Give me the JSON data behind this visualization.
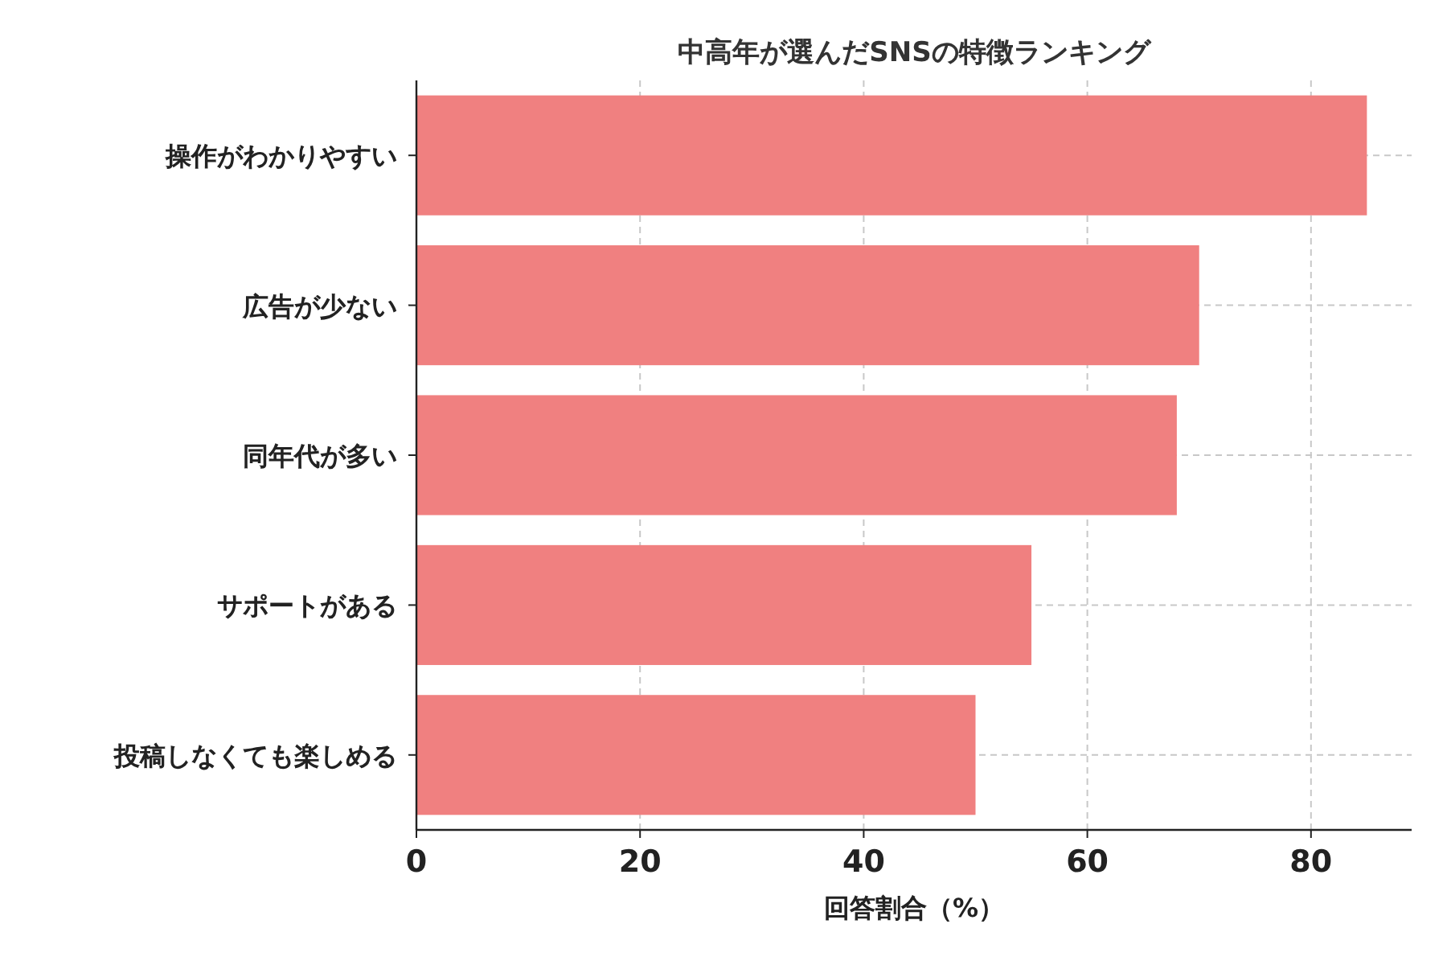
{
  "chart_data": {
    "type": "bar",
    "orientation": "horizontal",
    "title": "中高年が選んだSNSの特徴ランキング",
    "xlabel": "回答割合（%）",
    "categories": [
      "操作がわかりやすい",
      "広告が少ない",
      "同年代が多い",
      "サポートがある",
      "投稿しなくても楽しめる"
    ],
    "values": [
      85,
      70,
      68,
      55,
      50
    ],
    "color": "#f08080",
    "xlim": [
      0,
      89
    ],
    "xticks": [
      0,
      20,
      40,
      60,
      80
    ],
    "grid": true
  }
}
